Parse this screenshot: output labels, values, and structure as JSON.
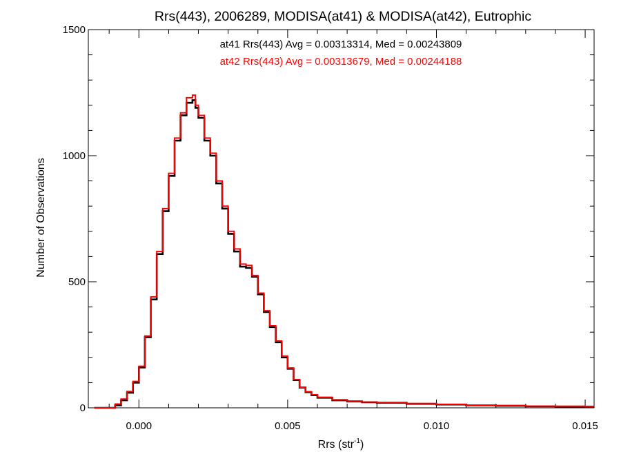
{
  "chart_data": {
    "type": "line",
    "title": "Rrs(443), 2006289, MODISA(at41) & MODISA(at42), Eutrophic",
    "xlabel": "Rrs (str",
    "xlabel_sup": "-1",
    "xlabel_tail": ")",
    "ylabel": "Number of Observations",
    "xlim": [
      -0.0017,
      0.0153
    ],
    "ylim": [
      0,
      1500
    ],
    "x_ticks": [
      0.0,
      0.005,
      0.01,
      0.015
    ],
    "x_tick_labels": [
      "0.000",
      "0.005",
      "0.010",
      "0.015"
    ],
    "y_ticks": [
      0,
      500,
      1000,
      1500
    ],
    "y_tick_labels": [
      "0",
      "500",
      "1000",
      "1500"
    ],
    "grid": false,
    "annotations": [
      {
        "text": "at41 Rrs(443) Avg = 0.00313314, Med = 0.00243809",
        "color": "#000000"
      },
      {
        "text": "at42 Rrs(443) Avg = 0.00313679, Med = 0.00244188",
        "color": "#ff0000"
      }
    ],
    "series": [
      {
        "name": "at41",
        "color": "#000000",
        "step": true,
        "x": [
          -0.0015,
          -0.001,
          -0.0008,
          -0.0006,
          -0.0004,
          -0.0002,
          0.0,
          0.0002,
          0.0004,
          0.0006,
          0.0008,
          0.001,
          0.0012,
          0.0014,
          0.0016,
          0.0018,
          0.0019,
          0.002,
          0.0022,
          0.0024,
          0.0026,
          0.0028,
          0.003,
          0.0032,
          0.0034,
          0.0036,
          0.0038,
          0.004,
          0.0042,
          0.0044,
          0.0046,
          0.0048,
          0.005,
          0.0052,
          0.0054,
          0.0056,
          0.0058,
          0.006,
          0.0065,
          0.007,
          0.0075,
          0.008,
          0.009,
          0.01,
          0.011,
          0.012,
          0.013,
          0.014,
          0.015
        ],
        "values": [
          0,
          0,
          10,
          30,
          60,
          100,
          160,
          280,
          430,
          610,
          780,
          920,
          1060,
          1160,
          1210,
          1220,
          1190,
          1150,
          1060,
          1000,
          890,
          790,
          690,
          620,
          560,
          555,
          520,
          450,
          380,
          320,
          260,
          200,
          155,
          110,
          80,
          62,
          50,
          40,
          30,
          25,
          22,
          20,
          16,
          13,
          10,
          8,
          6,
          5,
          5
        ]
      },
      {
        "name": "at42",
        "color": "#ff0000",
        "step": true,
        "x": [
          -0.0015,
          -0.001,
          -0.0008,
          -0.0006,
          -0.0004,
          -0.0002,
          0.0,
          0.0002,
          0.0004,
          0.0006,
          0.0008,
          0.001,
          0.0012,
          0.0014,
          0.0016,
          0.0018,
          0.0019,
          0.002,
          0.0022,
          0.0024,
          0.0026,
          0.0028,
          0.003,
          0.0032,
          0.0034,
          0.0036,
          0.0038,
          0.004,
          0.0042,
          0.0044,
          0.0046,
          0.0048,
          0.005,
          0.0052,
          0.0054,
          0.0056,
          0.0058,
          0.006,
          0.0065,
          0.007,
          0.0075,
          0.008,
          0.009,
          0.01,
          0.011,
          0.012,
          0.013,
          0.014,
          0.015
        ],
        "values": [
          0,
          0,
          15,
          35,
          65,
          105,
          165,
          285,
          440,
          620,
          790,
          930,
          1070,
          1170,
          1230,
          1240,
          1200,
          1160,
          1070,
          1010,
          900,
          800,
          700,
          630,
          570,
          565,
          525,
          455,
          385,
          325,
          265,
          205,
          158,
          112,
          82,
          64,
          52,
          42,
          32,
          27,
          23,
          21,
          17,
          14,
          11,
          9,
          7,
          6,
          5
        ]
      }
    ]
  }
}
